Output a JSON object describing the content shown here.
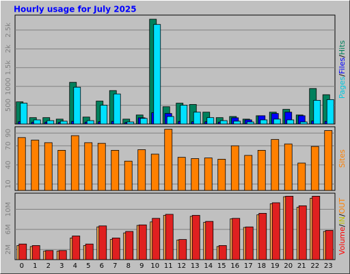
{
  "chart_data": [
    {
      "type": "bar",
      "title": "Hourly usage for July 2025",
      "ylim": [
        0,
        2900
      ],
      "yticks": [
        500,
        1000,
        {
          "value": 1500,
          "label": "1.5k"
        },
        {
          "value": 2000,
          "label": "2k"
        },
        {
          "value": 2500,
          "label": "2.5k"
        }
      ],
      "grid": true,
      "legend": [
        {
          "text": "Pages",
          "color": "#00c8e0"
        },
        {
          "text": "Files",
          "color": "#0000ff"
        },
        {
          "text": "Hits",
          "color": "#00805c"
        }
      ],
      "legend_separator": "/",
      "series": [
        {
          "color": "#00e0ff",
          "values": [
            555,
            110,
            90,
            75,
            980,
            90,
            500,
            800,
            55,
            150,
            2650,
            200,
            500,
            315,
            170,
            90,
            75,
            55,
            110,
            130,
            110,
            55,
            630,
            650
          ]
        },
        {
          "color": "#0000ff",
          "values": [
            60,
            50,
            50,
            40,
            70,
            50,
            60,
            70,
            40,
            165,
            300,
            280,
            70,
            60,
            60,
            50,
            165,
            110,
            220,
            280,
            315,
            220,
            80,
            70
          ]
        },
        {
          "color": "#00805c",
          "values": [
            590,
            170,
            170,
            130,
            1110,
            185,
            610,
            890,
            130,
            240,
            2790,
            460,
            555,
            520,
            315,
            170,
            200,
            130,
            220,
            315,
            390,
            240,
            945,
            780
          ]
        }
      ]
    },
    {
      "type": "bar",
      "ylim": [
        0,
        100
      ],
      "yticks": [
        10,
        40,
        70,
        90
      ],
      "grid": true,
      "legend": [
        {
          "text": "Sites",
          "color": "#ff8000"
        }
      ],
      "series": [
        {
          "color": "#ff8000",
          "values": [
            83,
            79,
            75,
            63,
            86,
            75,
            74,
            63,
            46,
            64,
            57,
            96,
            52,
            50,
            51,
            49,
            70,
            55,
            63,
            80,
            73,
            43,
            69,
            94
          ]
        }
      ]
    },
    {
      "type": "bar",
      "ylim": [
        0,
        13.2
      ],
      "yticks": [
        {
          "value": 2,
          "label": "2M"
        },
        {
          "value": 6,
          "label": "6M"
        },
        {
          "value": 10,
          "label": "10M"
        }
      ],
      "grid": true,
      "categories": [
        "0",
        "1",
        "2",
        "3",
        "4",
        "5",
        "6",
        "7",
        "8",
        "9",
        "10",
        "11",
        "12",
        "13",
        "14",
        "15",
        "16",
        "17",
        "18",
        "19",
        "20",
        "21",
        "22",
        "23"
      ],
      "legend": [
        {
          "text": "Volume",
          "color": "#ff0000"
        },
        {
          "text": "IN",
          "color": "#c0c000"
        },
        {
          "text": "OUT",
          "color": "#ff8000"
        }
      ],
      "legend_separator": "/",
      "series": [
        {
          "color": "#e02020",
          "values": [
            3.1,
            2.8,
            1.8,
            1.8,
            4.7,
            3.1,
            6.7,
            4.3,
            5.6,
            6.9,
            8.2,
            9.0,
            4.0,
            8.8,
            7.6,
            2.8,
            8.2,
            6.5,
            9.2,
            11.3,
            12.6,
            10.7,
            12.6,
            5.8
          ]
        },
        {
          "color": "#f4a450",
          "values": [
            2.8,
            2.6,
            1.7,
            1.7,
            4.3,
            2.8,
            6.5,
            4.0,
            5.3,
            6.8,
            7.5,
            8.8,
            3.9,
            8.6,
            7.4,
            2.6,
            8.1,
            6.4,
            8.9,
            11.1,
            12.5,
            10.4,
            12.2,
            5.6
          ]
        }
      ]
    }
  ]
}
